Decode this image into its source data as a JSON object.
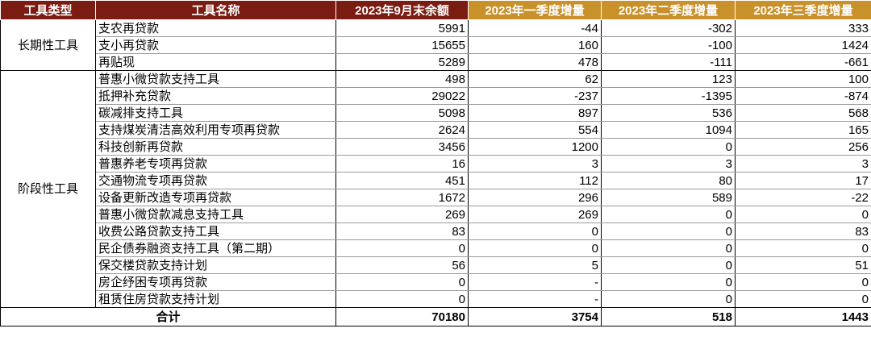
{
  "headers": [
    "工具类型",
    "工具名称",
    "2023年9月末余额",
    "2023年一季度增量",
    "2023年二季度增量",
    "2023年三季度增量"
  ],
  "groups": [
    {
      "type": "长期性工具",
      "rows": [
        [
          "支农再贷款",
          "5991",
          "-44",
          "-302",
          "333"
        ],
        [
          "支小再贷款",
          "15655",
          "160",
          "-100",
          "1424"
        ],
        [
          "再贴现",
          "5289",
          "478",
          "-111",
          "-661"
        ]
      ]
    },
    {
      "type": "阶段性工具",
      "rows": [
        [
          "普惠小微贷款支持工具",
          "498",
          "62",
          "123",
          "100"
        ],
        [
          "抵押补充贷款",
          "29022",
          "-237",
          "-1395",
          "-874"
        ],
        [
          "碳减排支持工具",
          "5098",
          "897",
          "536",
          "568"
        ],
        [
          "支持煤炭清洁高效利用专项再贷款",
          "2624",
          "554",
          "1094",
          "165"
        ],
        [
          "科技创新再贷款",
          "3456",
          "1200",
          "0",
          "256"
        ],
        [
          "普惠养老专项再贷款",
          "16",
          "3",
          "3",
          "3"
        ],
        [
          "交通物流专项再贷款",
          "451",
          "112",
          "80",
          "17"
        ],
        [
          "设备更新改造专项再贷款",
          "1672",
          "296",
          "589",
          "-22"
        ],
        [
          "普惠小微贷款减息支持工具",
          "269",
          "269",
          "0",
          "0"
        ],
        [
          "收费公路贷款支持工具",
          "83",
          "0",
          "0",
          "83"
        ],
        [
          "民企债券融资支持工具（第二期）",
          "0",
          "0",
          "0",
          "0"
        ],
        [
          "保交楼贷款支持计划",
          "56",
          "5",
          "0",
          "51"
        ],
        [
          "房企纾困专项再贷款",
          "0",
          "-",
          "0",
          "0"
        ],
        [
          "租赁住房贷款支持计划",
          "0",
          "-",
          "0",
          "0"
        ]
      ]
    }
  ],
  "total": {
    "label": "合计",
    "values": [
      "70180",
      "3754",
      "518",
      "1443"
    ]
  },
  "colors": {
    "header_dark": "#7b1c12",
    "header_gold": "#c9912a"
  }
}
